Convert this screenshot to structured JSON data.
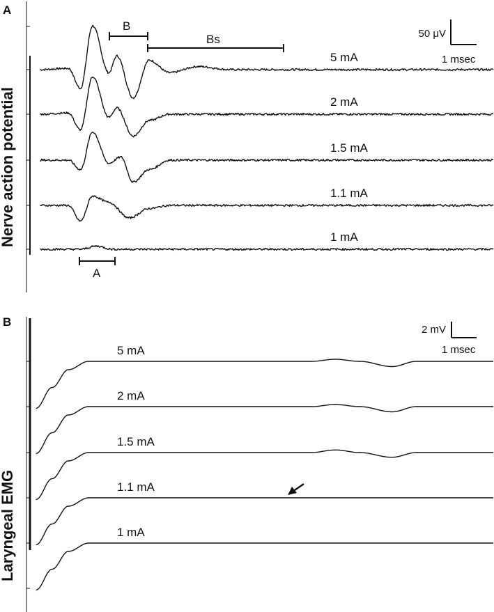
{
  "panels": [
    {
      "letter": "A",
      "ylabel": "Nerve action potential",
      "scale": {
        "amplitude": "50 μV",
        "time": "1 msec"
      },
      "components": [
        {
          "label": "A"
        },
        {
          "label": "B"
        },
        {
          "label": "Bs"
        }
      ]
    },
    {
      "letter": "B",
      "ylabel": "Laryngeal EMG",
      "scale": {
        "amplitude": "2 mV",
        "time": "1 msec"
      }
    }
  ],
  "chart_data": [
    {
      "type": "line",
      "panel": "A",
      "ylabel": "Nerve action potential",
      "x_units": "msec",
      "y_units": "μV",
      "xlim": [
        0,
        11.5
      ],
      "series": [
        {
          "name": "5 mA",
          "points": [
            [
              0.3,
              0
            ],
            [
              1.0,
              2
            ],
            [
              1.3,
              -30
            ],
            [
              1.6,
              70
            ],
            [
              2.0,
              -5
            ],
            [
              2.2,
              22
            ],
            [
              2.6,
              -45
            ],
            [
              3.0,
              15
            ],
            [
              3.5,
              -5
            ],
            [
              4.2,
              5
            ],
            [
              5.0,
              0
            ],
            [
              11.5,
              0
            ]
          ]
        },
        {
          "name": "2 mA",
          "points": [
            [
              0.3,
              0
            ],
            [
              1.0,
              2
            ],
            [
              1.3,
              -25
            ],
            [
              1.6,
              60
            ],
            [
              2.0,
              -5
            ],
            [
              2.2,
              10
            ],
            [
              2.6,
              -35
            ],
            [
              3.0,
              -10
            ],
            [
              3.5,
              0
            ],
            [
              11.5,
              0
            ]
          ]
        },
        {
          "name": "1.5 mA",
          "points": [
            [
              0.3,
              0
            ],
            [
              1.0,
              0
            ],
            [
              1.3,
              -15
            ],
            [
              1.6,
              45
            ],
            [
              2.0,
              -5
            ],
            [
              2.3,
              5
            ],
            [
              2.6,
              -35
            ],
            [
              3.0,
              -15
            ],
            [
              3.5,
              0
            ],
            [
              11.5,
              0
            ]
          ]
        },
        {
          "name": "1.1 mA",
          "points": [
            [
              0.3,
              0
            ],
            [
              1.0,
              0
            ],
            [
              1.3,
              -25
            ],
            [
              1.6,
              15
            ],
            [
              2.0,
              5
            ],
            [
              2.5,
              -20
            ],
            [
              3.0,
              -5
            ],
            [
              3.5,
              0
            ],
            [
              11.5,
              0
            ]
          ]
        },
        {
          "name": "1 mA",
          "points": [
            [
              0.3,
              0
            ],
            [
              1.3,
              0
            ],
            [
              1.7,
              5
            ],
            [
              2.1,
              0
            ],
            [
              11.5,
              0
            ]
          ]
        }
      ]
    },
    {
      "type": "line",
      "panel": "B",
      "ylabel": "Laryngeal EMG",
      "x_units": "msec",
      "y_units": "mV",
      "xlim": [
        0,
        11.5
      ],
      "series": [
        {
          "name": "5 mA",
          "points": [
            [
              0.2,
              -4.5
            ],
            [
              0.6,
              -2.5
            ],
            [
              1.0,
              -0.8
            ],
            [
              1.5,
              0
            ],
            [
              7.0,
              0
            ],
            [
              7.6,
              0.2
            ],
            [
              8.2,
              0
            ],
            [
              9.0,
              -0.5
            ],
            [
              9.6,
              0
            ],
            [
              10.5,
              0
            ],
            [
              11.5,
              0
            ]
          ]
        },
        {
          "name": "2 mA",
          "points": [
            [
              0.2,
              -4.5
            ],
            [
              0.6,
              -2.5
            ],
            [
              1.0,
              -0.8
            ],
            [
              1.5,
              0
            ],
            [
              7.0,
              0
            ],
            [
              7.6,
              0.2
            ],
            [
              8.2,
              0
            ],
            [
              9.0,
              -0.5
            ],
            [
              9.6,
              0
            ],
            [
              10.5,
              0
            ],
            [
              11.5,
              0
            ]
          ]
        },
        {
          "name": "1.5 mA",
          "points": [
            [
              0.2,
              -4.5
            ],
            [
              0.6,
              -2.5
            ],
            [
              1.0,
              -0.8
            ],
            [
              1.5,
              0
            ],
            [
              7.0,
              0
            ],
            [
              7.6,
              0.25
            ],
            [
              8.2,
              0
            ],
            [
              9.0,
              -0.45
            ],
            [
              9.6,
              0
            ],
            [
              11.5,
              0
            ]
          ]
        },
        {
          "name": "1.1 mA",
          "points": [
            [
              0.2,
              -4.5
            ],
            [
              0.6,
              -2.5
            ],
            [
              1.0,
              -0.8
            ],
            [
              1.5,
              0
            ],
            [
              11.5,
              0
            ]
          ]
        },
        {
          "name": "1 mA",
          "points": [
            [
              0.2,
              -4.5
            ],
            [
              0.6,
              -2.5
            ],
            [
              1.0,
              -0.8
            ],
            [
              1.5,
              0
            ],
            [
              11.5,
              0
            ]
          ]
        }
      ]
    }
  ]
}
